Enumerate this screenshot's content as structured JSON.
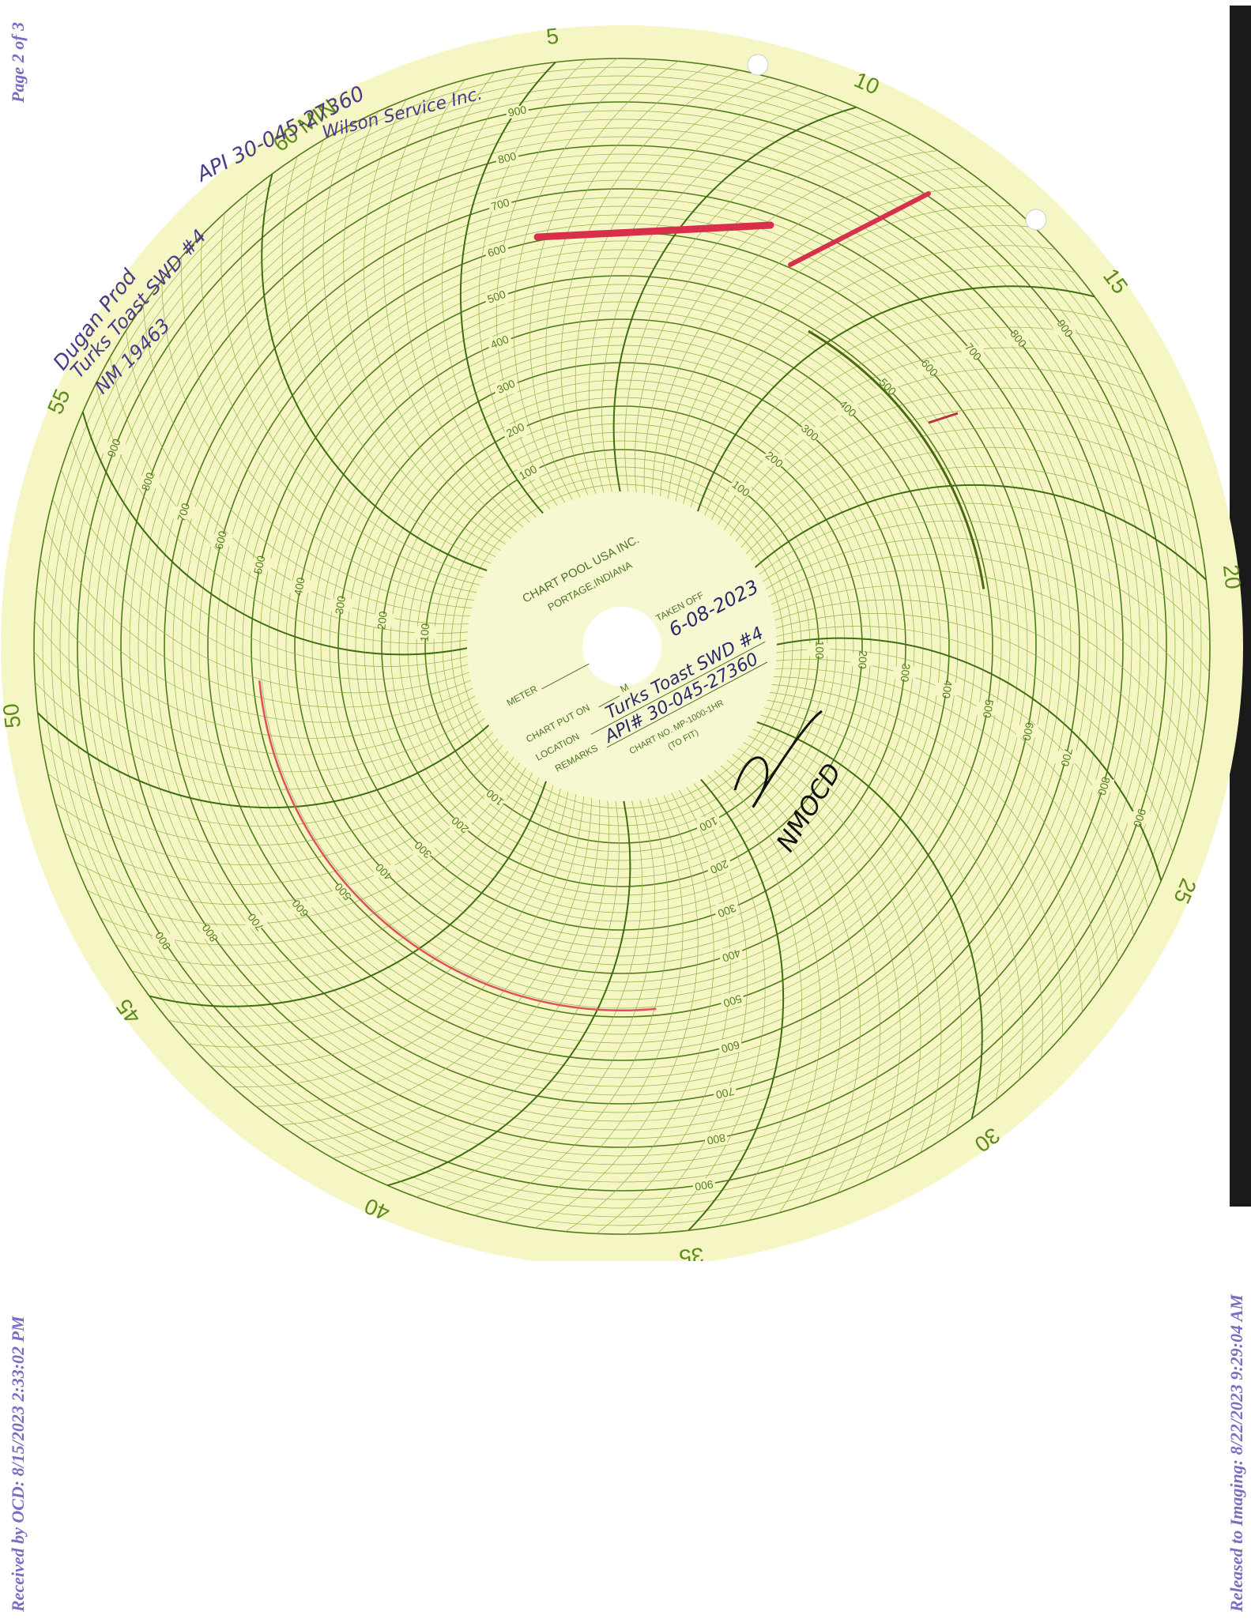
{
  "stamps": {
    "page": "Page 2 of 3",
    "received": "Received by OCD: 8/15/2023 2:33:02 PM",
    "released": "Released to Imaging: 8/22/2023 9:29:04 AM"
  },
  "chart_paper": {
    "maker": "CHART POOL USA INC.",
    "city": "PORTAGE,INDIANA",
    "fields": {
      "meter": "METER",
      "put_on": "CHART PUT ON",
      "m": "M",
      "taken_off": "TAKEN OFF",
      "location": "LOCATION",
      "remarks": "REMARKS",
      "chart_no": "CHART NO. MP-1000-1HR",
      "to_fit": "(TO FIT)"
    },
    "period_label": "60 MIN",
    "minute_labels": [
      "5",
      "10",
      "15",
      "20",
      "25",
      "30",
      "35",
      "40",
      "45",
      "50",
      "55"
    ],
    "pressure_labels": [
      "100",
      "200",
      "300",
      "400",
      "500",
      "600",
      "700",
      "800",
      "900"
    ]
  },
  "handwriting": {
    "operator": "Dugan Prod",
    "well": "Turks Toast SWD #4",
    "permit": "NM 19463",
    "api": "API 30-045-27360",
    "service": "Wilson Service Inc.",
    "taken_off_date": "6-08-2023",
    "location": "Turks Toast SWD #4",
    "remarks": "API# 30-045-27360",
    "witness": "NMOCD"
  }
}
